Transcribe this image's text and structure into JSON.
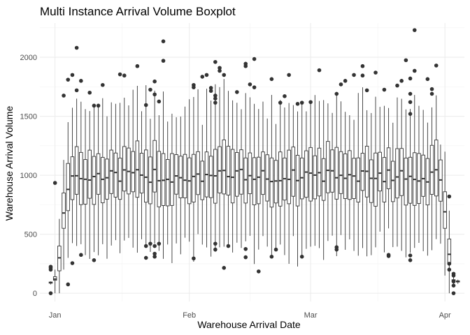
{
  "chart_data": {
    "type": "boxplot",
    "title": "Multi Instance Arrival Volume Boxplot",
    "xlabel": "Warehouse Arrival Date",
    "ylabel": "Warehouse Arrival Volume",
    "x_ticks": [
      {
        "label": "Jan",
        "day": 0
      },
      {
        "label": "Feb",
        "day": 31
      },
      {
        "label": "Mar",
        "day": 59
      },
      {
        "label": "Apr",
        "day": 90
      }
    ],
    "ylim": [
      -70,
      2290
    ],
    "y_ticks": [
      0,
      500,
      1000,
      1500,
      2000
    ],
    "grid": true,
    "outlier_points": [
      [
        -1,
        0
      ],
      [
        -1,
        200
      ],
      [
        -1,
        215
      ],
      [
        -1,
        225
      ],
      [
        0,
        935
      ],
      [
        2,
        1675
      ],
      [
        3,
        1810
      ],
      [
        3,
        75
      ],
      [
        4,
        1850
      ],
      [
        4,
        255
      ],
      [
        5,
        2080
      ],
      [
        5,
        1720
      ],
      [
        6,
        1800
      ],
      [
        6,
        325
      ],
      [
        8,
        1700
      ],
      [
        9,
        280
      ],
      [
        9,
        1590
      ],
      [
        10,
        1590
      ],
      [
        11,
        1765
      ],
      [
        15,
        1855
      ],
      [
        16,
        1845
      ],
      [
        19,
        1925
      ],
      [
        21,
        1595
      ],
      [
        21,
        400
      ],
      [
        21,
        300
      ],
      [
        22,
        1725
      ],
      [
        22,
        420
      ],
      [
        23,
        1795
      ],
      [
        23,
        1685
      ],
      [
        23,
        400
      ],
      [
        23,
        335
      ],
      [
        23,
        310
      ],
      [
        24,
        420
      ],
      [
        24,
        1625
      ],
      [
        25,
        1970
      ],
      [
        25,
        2135
      ],
      [
        32,
        295
      ],
      [
        32,
        1765
      ],
      [
        32,
        1745
      ],
      [
        34,
        1835
      ],
      [
        35,
        1850
      ],
      [
        36,
        1740
      ],
      [
        36,
        1715
      ],
      [
        37,
        1675
      ],
      [
        37,
        1650
      ],
      [
        37,
        1615
      ],
      [
        37,
        1960
      ],
      [
        37,
        420
      ],
      [
        37,
        370
      ],
      [
        38,
        1910
      ],
      [
        38,
        1885
      ],
      [
        39,
        215
      ],
      [
        39,
        1850
      ],
      [
        40,
        400
      ],
      [
        42,
        1705
      ],
      [
        44,
        1945
      ],
      [
        44,
        1925
      ],
      [
        44,
        375
      ],
      [
        44,
        305
      ],
      [
        45,
        1770
      ],
      [
        46,
        1985
      ],
      [
        46,
        1745
      ],
      [
        47,
        185
      ],
      [
        50,
        1815
      ],
      [
        50,
        310
      ],
      [
        51,
        370
      ],
      [
        52,
        1615
      ],
      [
        53,
        1670
      ],
      [
        54,
        1850
      ],
      [
        56,
        1605
      ],
      [
        57,
        1615
      ],
      [
        57,
        310
      ],
      [
        59,
        1620
      ],
      [
        61,
        1890
      ],
      [
        65,
        1690
      ],
      [
        65,
        390
      ],
      [
        65,
        370
      ],
      [
        66,
        1770
      ],
      [
        67,
        1800
      ],
      [
        69,
        1850
      ],
      [
        71,
        1925
      ],
      [
        71,
        1845
      ],
      [
        72,
        1720
      ],
      [
        74,
        1870
      ],
      [
        76,
        1725
      ],
      [
        77,
        325
      ],
      [
        77,
        315
      ],
      [
        79,
        1760
      ],
      [
        80,
        1800
      ],
      [
        81,
        1975
      ],
      [
        82,
        1820
      ],
      [
        82,
        1690
      ],
      [
        82,
        1620
      ],
      [
        82,
        1520
      ],
      [
        82,
        320
      ],
      [
        82,
        280
      ],
      [
        83,
        1885
      ],
      [
        83,
        2230
      ],
      [
        86,
        1815
      ],
      [
        87,
        1730
      ],
      [
        87,
        1690
      ],
      [
        88,
        1930
      ],
      [
        91,
        820
      ],
      [
        91,
        250
      ],
      [
        91,
        200
      ],
      [
        92,
        165
      ],
      [
        92,
        150
      ],
      [
        92,
        100
      ],
      [
        92,
        65
      ],
      [
        92,
        0
      ]
    ]
  }
}
